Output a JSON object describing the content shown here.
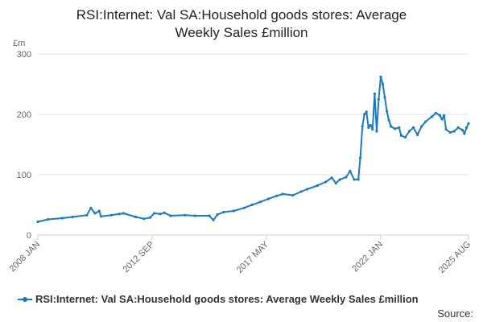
{
  "chart_data": {
    "type": "line",
    "title_lines": [
      "RSI:Internet: Val SA:Household goods stores: Average",
      "Weekly Sales £million"
    ],
    "ylabel": "£m",
    "xlabel": "",
    "ylim": [
      0,
      300
    ],
    "yticks": [
      "0",
      "100",
      "200",
      "300"
    ],
    "xlim": [
      "2008-01",
      "2025-08"
    ],
    "xticks": [
      {
        "label": "2008 JAN",
        "date": "2008-01"
      },
      {
        "label": "2012 SEP",
        "date": "2012-09"
      },
      {
        "label": "2017 MAY",
        "date": "2017-05"
      },
      {
        "label": "2022 JAN",
        "date": "2022-01"
      },
      {
        "label": "2025 AUG",
        "date": "2025-08"
      }
    ],
    "grid": "horizontal",
    "legend": "bottom",
    "source_label": "Source:",
    "color": "#1a7bbf",
    "series": [
      {
        "name": "RSI:Internet: Val SA:Household goods stores: Average Weekly Sales £million",
        "points": [
          [
            "2008-01",
            22
          ],
          [
            "2008-06",
            26
          ],
          [
            "2009-01",
            28
          ],
          [
            "2009-06",
            30
          ],
          [
            "2010-01",
            33
          ],
          [
            "2010-03",
            45
          ],
          [
            "2010-05",
            36
          ],
          [
            "2010-07",
            40
          ],
          [
            "2010-08",
            31
          ],
          [
            "2011-01",
            33
          ],
          [
            "2011-05",
            35
          ],
          [
            "2011-07",
            36
          ],
          [
            "2012-01",
            30
          ],
          [
            "2012-05",
            27
          ],
          [
            "2012-08",
            29
          ],
          [
            "2012-10",
            36
          ],
          [
            "2013-01",
            35
          ],
          [
            "2013-03",
            37
          ],
          [
            "2013-06",
            32
          ],
          [
            "2014-01",
            33
          ],
          [
            "2014-06",
            32
          ],
          [
            "2015-01",
            32
          ],
          [
            "2015-03",
            25
          ],
          [
            "2015-05",
            34
          ],
          [
            "2015-08",
            38
          ],
          [
            "2016-01",
            40
          ],
          [
            "2016-06",
            45
          ],
          [
            "2016-10",
            50
          ],
          [
            "2017-02",
            55
          ],
          [
            "2017-06",
            60
          ],
          [
            "2017-10",
            65
          ],
          [
            "2018-01",
            68
          ],
          [
            "2018-06",
            66
          ],
          [
            "2018-10",
            72
          ],
          [
            "2019-01",
            76
          ],
          [
            "2019-06",
            82
          ],
          [
            "2019-10",
            88
          ],
          [
            "2020-01",
            95
          ],
          [
            "2020-03",
            86
          ],
          [
            "2020-05",
            92
          ],
          [
            "2020-08",
            96
          ],
          [
            "2020-10",
            106
          ],
          [
            "2020-12",
            92
          ],
          [
            "2021-02",
            92
          ],
          [
            "2021-03",
            128
          ],
          [
            "2021-04",
            180
          ],
          [
            "2021-05",
            200
          ],
          [
            "2021-06",
            204
          ],
          [
            "2021-07",
            178
          ],
          [
            "2021-08",
            182
          ],
          [
            "2021-09",
            175
          ],
          [
            "2021-10",
            234
          ],
          [
            "2021-11",
            172
          ],
          [
            "2021-12",
            225
          ],
          [
            "2022-01",
            262
          ],
          [
            "2022-02",
            250
          ],
          [
            "2022-03",
            228
          ],
          [
            "2022-04",
            205
          ],
          [
            "2022-05",
            190
          ],
          [
            "2022-06",
            180
          ],
          [
            "2022-08",
            176
          ],
          [
            "2022-10",
            178
          ],
          [
            "2022-11",
            165
          ],
          [
            "2023-01",
            162
          ],
          [
            "2023-03",
            172
          ],
          [
            "2023-05",
            178
          ],
          [
            "2023-07",
            166
          ],
          [
            "2023-09",
            180
          ],
          [
            "2023-11",
            188
          ],
          [
            "2024-02",
            196
          ],
          [
            "2024-04",
            202
          ],
          [
            "2024-06",
            198
          ],
          [
            "2024-07",
            192
          ],
          [
            "2024-08",
            198
          ],
          [
            "2024-09",
            175
          ],
          [
            "2024-11",
            170
          ],
          [
            "2025-01",
            172
          ],
          [
            "2025-03",
            178
          ],
          [
            "2025-05",
            174
          ],
          [
            "2025-06",
            168
          ],
          [
            "2025-07",
            178
          ],
          [
            "2025-08",
            185
          ]
        ]
      }
    ]
  }
}
